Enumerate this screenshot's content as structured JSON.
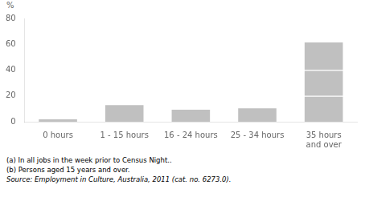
{
  "chart_data": {
    "type": "bar",
    "stacked": true,
    "grid": false,
    "categories": [
      "0 hours",
      "1 - 15 hours",
      "16 - 24 hours",
      "25 - 34 hours",
      "35 hours\nand over"
    ],
    "series": [
      {
        "color": "#c0c0c0",
        "values": [
          2.5,
          13.5,
          10.0,
          11.0,
          20.0
        ]
      },
      {
        "color": "#c0c0c0",
        "values": [
          null,
          null,
          null,
          null,
          20.0
        ]
      },
      {
        "color": "#c0c0c0",
        "values": [
          null,
          null,
          null,
          null,
          22.0
        ]
      }
    ],
    "ylabel": "%",
    "ylim": [
      0,
      80
    ],
    "yticks": [
      0,
      20,
      40,
      60,
      80
    ],
    "annotations": [
      "(a) In all jobs in the week prior to Census Night..",
      "(b) Persons aged 15 years and over.",
      "Source: Employment in Culture, Australia, 2011 (cat.  no.  6273.0)."
    ]
  }
}
